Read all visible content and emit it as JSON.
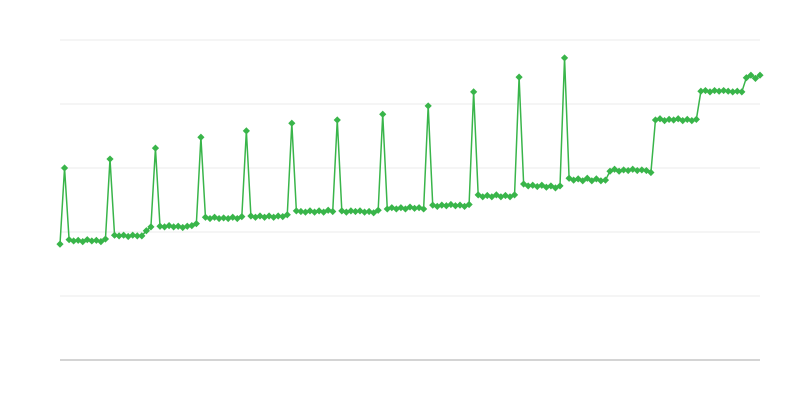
{
  "chart_data": {
    "type": "line",
    "title": "",
    "xlabel": "",
    "ylabel": "",
    "ylim": [
      0,
      5
    ],
    "grid": true,
    "gridline_count": 5,
    "legend": "none",
    "marker": "diamond",
    "color": "#39b54a",
    "grid_color": "#ebebeb",
    "axis_color": "#aaaaaa",
    "series": [
      {
        "values": [
          1.81,
          3.0,
          1.88,
          1.86,
          1.87,
          1.85,
          1.88,
          1.86,
          1.87,
          1.85,
          1.89,
          3.14,
          1.95,
          1.94,
          1.95,
          1.93,
          1.95,
          1.94,
          1.94,
          2.02,
          2.08,
          3.31,
          2.09,
          2.08,
          2.1,
          2.08,
          2.09,
          2.07,
          2.09,
          2.1,
          2.13,
          3.48,
          2.23,
          2.21,
          2.23,
          2.21,
          2.22,
          2.21,
          2.23,
          2.21,
          2.24,
          3.58,
          2.25,
          2.23,
          2.25,
          2.23,
          2.25,
          2.23,
          2.25,
          2.24,
          2.27,
          3.7,
          2.33,
          2.32,
          2.31,
          2.33,
          2.31,
          2.33,
          2.31,
          2.34,
          2.32,
          3.75,
          2.33,
          2.31,
          2.33,
          2.32,
          2.33,
          2.31,
          2.32,
          2.3,
          2.34,
          3.84,
          2.36,
          2.38,
          2.36,
          2.38,
          2.36,
          2.39,
          2.37,
          2.38,
          2.36,
          3.97,
          2.42,
          2.4,
          2.42,
          2.41,
          2.43,
          2.41,
          2.42,
          2.4,
          2.43,
          4.19,
          2.58,
          2.55,
          2.57,
          2.55,
          2.58,
          2.55,
          2.57,
          2.55,
          2.58,
          4.42,
          2.75,
          2.72,
          2.73,
          2.71,
          2.73,
          2.7,
          2.72,
          2.69,
          2.72,
          4.72,
          2.84,
          2.81,
          2.83,
          2.8,
          2.84,
          2.8,
          2.83,
          2.8,
          2.81,
          2.95,
          2.98,
          2.95,
          2.97,
          2.96,
          2.98,
          2.96,
          2.97,
          2.96,
          2.93,
          3.75,
          3.77,
          3.74,
          3.76,
          3.75,
          3.77,
          3.74,
          3.76,
          3.74,
          3.76,
          4.2,
          4.21,
          4.19,
          4.21,
          4.2,
          4.21,
          4.2,
          4.19,
          4.2,
          4.19,
          4.41,
          4.45,
          4.4,
          4.45
        ]
      }
    ]
  }
}
